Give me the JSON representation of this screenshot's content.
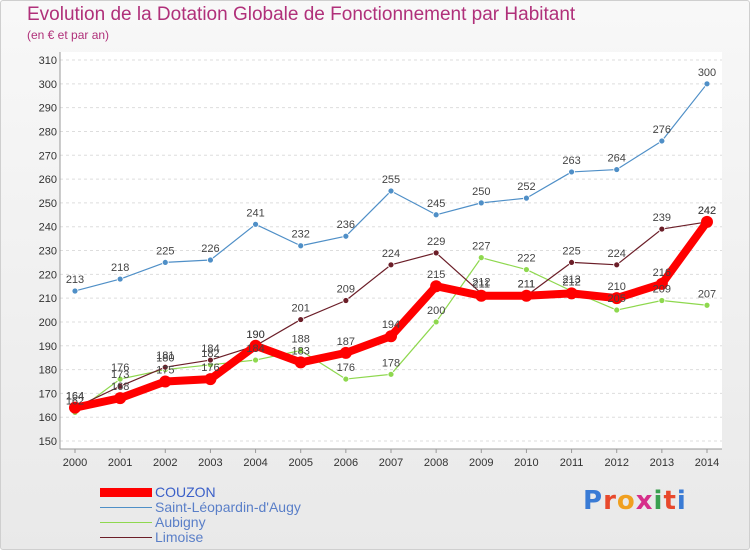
{
  "header": {
    "title": "Evolution de la Dotation Globale de Fonctionnement par Habitant",
    "subtitle": "(en € et par an)"
  },
  "brand": {
    "logo_text": "Proxiti",
    "letter_colors": [
      "#3a7bd5",
      "#e8492c",
      "#f0a020",
      "#d62e8a",
      "#3aa050",
      "#e8492c",
      "#3a7bd5"
    ]
  },
  "chart_data": {
    "type": "line",
    "title": "Evolution de la Dotation Globale de Fonctionnement par Habitant",
    "subtitle": "(en € et par an)",
    "x": [
      "2000",
      "2001",
      "2002",
      "2003",
      "2004",
      "2005",
      "2006",
      "2007",
      "2008",
      "2009",
      "2010",
      "2011",
      "2012",
      "2013",
      "2014"
    ],
    "ylim": [
      150,
      310
    ],
    "yticks": [
      150,
      160,
      170,
      180,
      190,
      200,
      210,
      220,
      230,
      240,
      250,
      260,
      270,
      280,
      290,
      300,
      310
    ],
    "grid": "horizontal",
    "legend_position": "bottom-left",
    "series": [
      {
        "name": "Saint-Léopardin-d'Augy",
        "color": "#4f8fc7",
        "values": [
          213,
          218,
          225,
          226,
          241,
          232,
          236,
          255,
          245,
          250,
          252,
          263,
          264,
          276,
          300
        ]
      },
      {
        "name": "Aubigny",
        "color": "#8ed84e",
        "values": [
          162,
          176,
          180,
          182,
          184,
          188,
          176,
          178,
          200,
          227,
          222,
          213,
          205,
          209,
          207
        ]
      },
      {
        "name": "Limoise",
        "color": "#6b1e28",
        "values": [
          164,
          173,
          181,
          184,
          190,
          201,
          209,
          224,
          229,
          212,
          211,
          225,
          224,
          239,
          242
        ]
      },
      {
        "name": "COUZON",
        "color": "#ff0000",
        "values": [
          164,
          168,
          175,
          176,
          190,
          183,
          187,
          194,
          215,
          211,
          211,
          212,
          210,
          216,
          242
        ]
      }
    ]
  }
}
